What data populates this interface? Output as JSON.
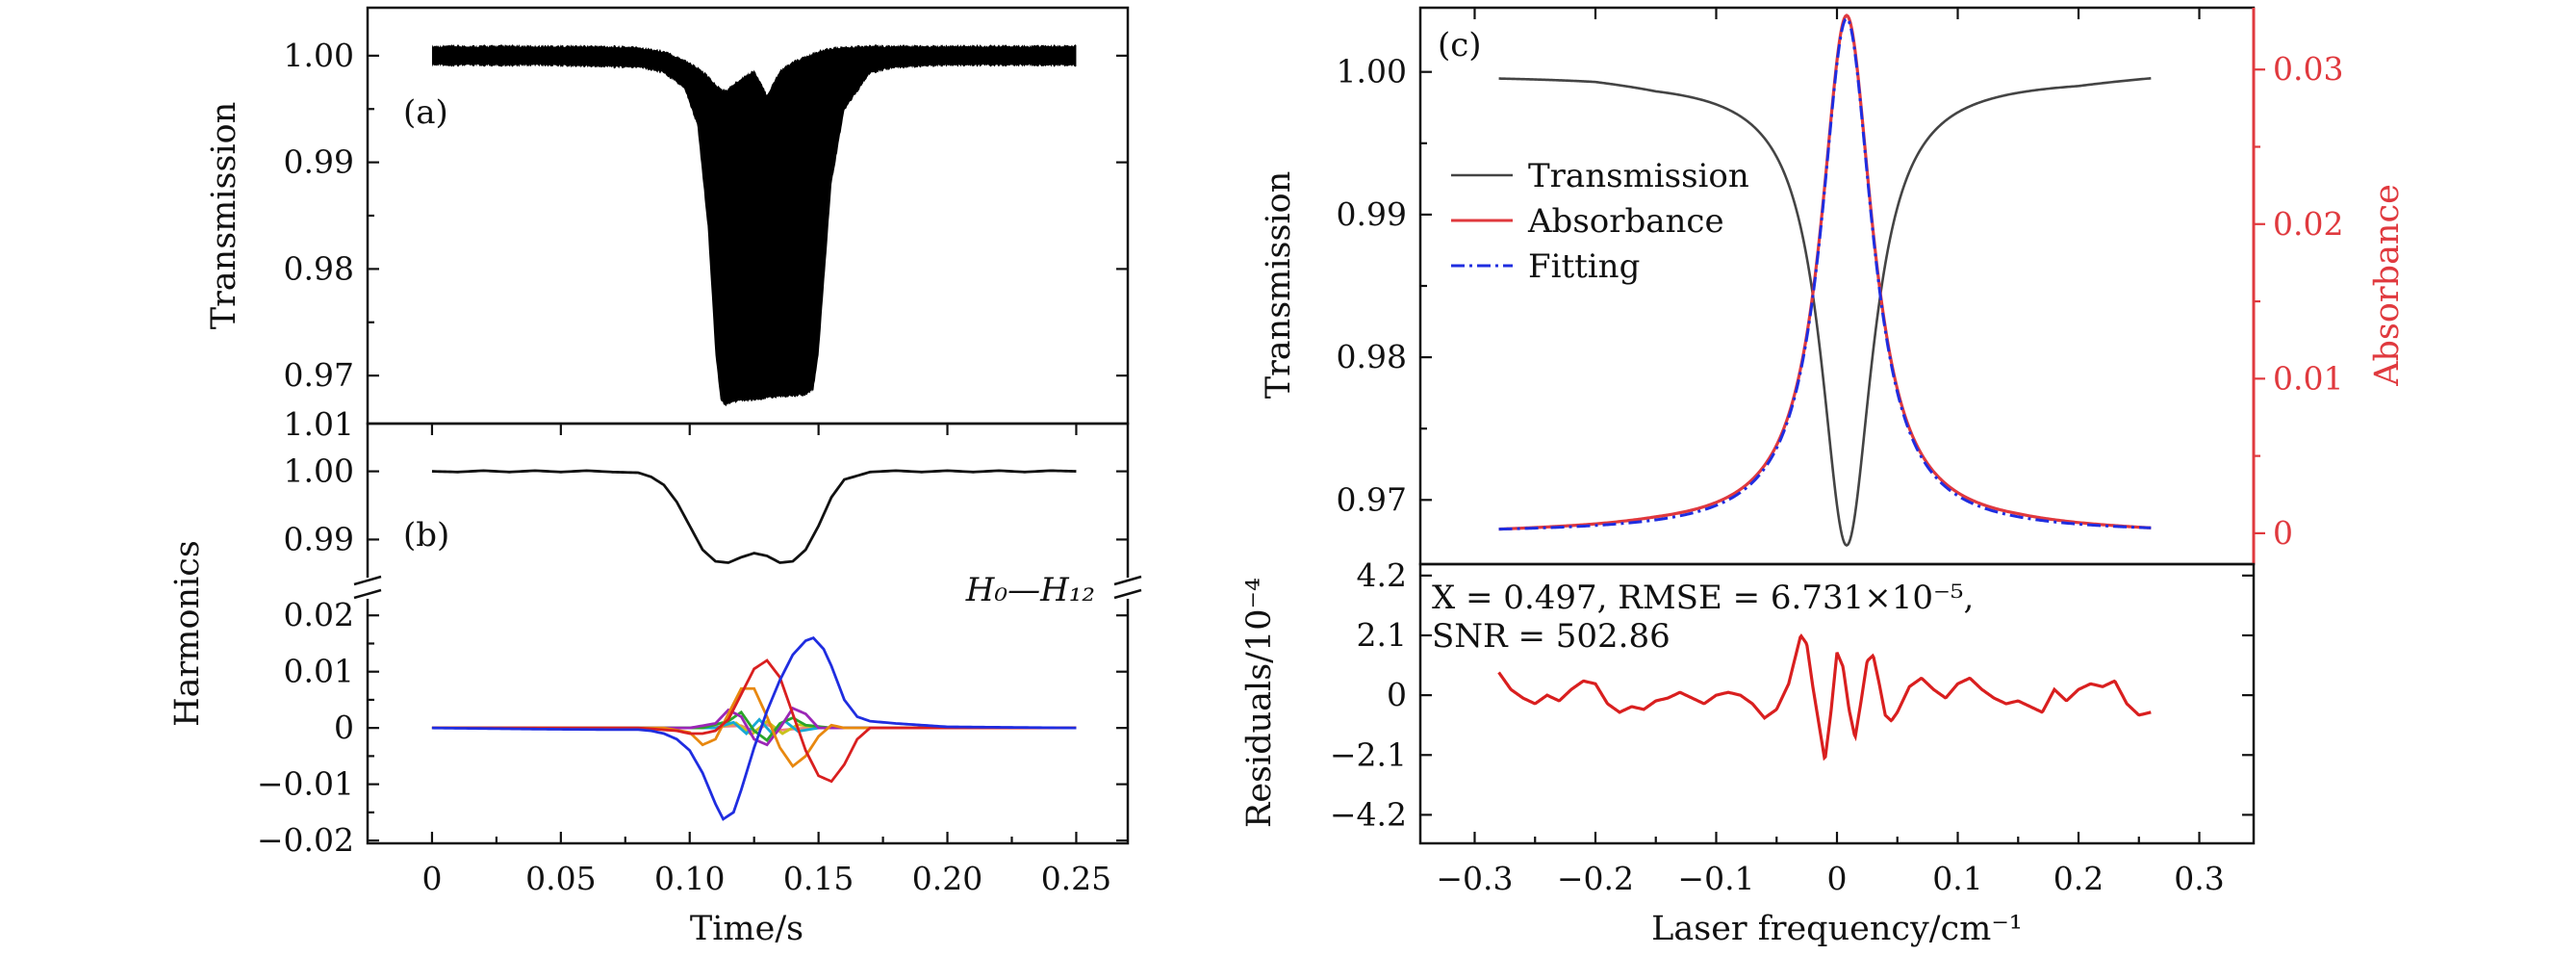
{
  "chart_data": [
    {
      "id": "a",
      "type": "line",
      "panel_label": "(a)",
      "ylabel": "Transmission",
      "xlabel": "Time/s",
      "xlim": [
        -0.025,
        0.27
      ],
      "ylim": [
        0.9655,
        1.0045
      ],
      "yticks": [
        0.97,
        0.98,
        0.99,
        1.0
      ],
      "ytick_labels": [
        "0.97",
        "0.98",
        "0.99",
        "1.00"
      ],
      "ytop_label": "1.01",
      "description_series": "dense scanned-wavelength-modulation transmission signal",
      "envelope": {
        "x": [
          0.0,
          0.02,
          0.04,
          0.06,
          0.08,
          0.09,
          0.098,
          0.103,
          0.107,
          0.11,
          0.112,
          0.114,
          0.116,
          0.12,
          0.125,
          0.13,
          0.135,
          0.14,
          0.145,
          0.148,
          0.15,
          0.155,
          0.16,
          0.17,
          0.18,
          0.2,
          0.22,
          0.25
        ],
        "upper": [
          1.0008,
          1.0008,
          1.0008,
          1.0008,
          1.0007,
          1.0003,
          0.9995,
          0.9988,
          0.998,
          0.9972,
          0.9968,
          0.9966,
          0.997,
          0.9978,
          0.9985,
          0.9962,
          0.9985,
          0.9993,
          0.9998,
          1.0001,
          1.0003,
          1.0006,
          1.0007,
          1.0008,
          1.0008,
          1.0008,
          1.0008,
          1.0008
        ],
        "lower": [
          0.9992,
          0.9992,
          0.9992,
          0.9991,
          0.999,
          0.9985,
          0.997,
          0.9935,
          0.984,
          0.972,
          0.9678,
          0.9673,
          0.9676,
          0.9677,
          0.9678,
          0.968,
          0.9681,
          0.9682,
          0.9683,
          0.9688,
          0.972,
          0.988,
          0.995,
          0.9985,
          0.999,
          0.9992,
          0.9992,
          0.9992
        ]
      }
    },
    {
      "id": "b",
      "type": "line",
      "panel_label": "(b)",
      "ylabel": "Harmonics",
      "xlabel": "Time/s",
      "xlim": [
        -0.025,
        0.27
      ],
      "xticks": [
        0,
        0.05,
        0.1,
        0.15,
        0.2,
        0.25
      ],
      "xtick_labels": [
        "0",
        "0.05",
        "0.10",
        "0.15",
        "0.20",
        "0.25"
      ],
      "upper": {
        "ylim": [
          0.983,
          1.007
        ],
        "yticks": [
          0.99,
          1.0
        ],
        "ytick_labels": [
          "0.99",
          "1.00"
        ],
        "series": [
          {
            "name": "H0",
            "x": [
              0,
              0.01,
              0.02,
              0.03,
              0.04,
              0.05,
              0.06,
              0.07,
              0.08,
              0.085,
              0.09,
              0.095,
              0.1,
              0.105,
              0.11,
              0.115,
              0.12,
              0.125,
              0.13,
              0.135,
              0.14,
              0.145,
              0.15,
              0.155,
              0.16,
              0.17,
              0.18,
              0.19,
              0.2,
              0.21,
              0.22,
              0.23,
              0.24,
              0.25
            ],
            "y": [
              1.0,
              0.9999,
              1.0001,
              0.9999,
              1.0001,
              0.9999,
              1.0001,
              0.9999,
              0.9998,
              0.9992,
              0.998,
              0.9955,
              0.992,
              0.9885,
              0.9868,
              0.9866,
              0.9874,
              0.988,
              0.9876,
              0.9866,
              0.9868,
              0.9885,
              0.992,
              0.9962,
              0.9988,
              0.9999,
              1.0001,
              0.9999,
              1.0001,
              0.9999,
              1.0001,
              0.9999,
              1.0001,
              1.0
            ]
          }
        ]
      },
      "lower": {
        "ylim": [
          -0.0205,
          0.025
        ],
        "yticks": [
          -0.02,
          -0.01,
          0,
          0.01,
          0.02
        ],
        "ytick_labels": [
          "−0.02",
          "−0.01",
          "0",
          "0.01",
          "0.02"
        ],
        "annotation": "H₀—H₁₂",
        "series": [
          {
            "name": "H1",
            "color": "#1f2de0",
            "x": [
              0,
              0.04,
              0.07,
              0.08,
              0.085,
              0.09,
              0.095,
              0.1,
              0.105,
              0.11,
              0.113,
              0.117,
              0.12,
              0.125,
              0.13,
              0.135,
              0.14,
              0.145,
              0.148,
              0.152,
              0.155,
              0.16,
              0.165,
              0.17,
              0.18,
              0.2,
              0.25
            ],
            "y": [
              0,
              -0.0002,
              -0.0003,
              -0.0003,
              -0.0005,
              -0.001,
              -0.002,
              -0.004,
              -0.008,
              -0.0135,
              -0.0162,
              -0.015,
              -0.011,
              -0.0035,
              0.003,
              0.0085,
              0.013,
              0.0155,
              0.016,
              0.014,
              0.011,
              0.005,
              0.002,
              0.0012,
              0.0008,
              0.0002,
              0
            ]
          },
          {
            "name": "H2",
            "color": "#d91f1f",
            "x": [
              0,
              0.08,
              0.095,
              0.1,
              0.105,
              0.11,
              0.115,
              0.12,
              0.125,
              0.13,
              0.135,
              0.14,
              0.145,
              0.15,
              0.155,
              0.16,
              0.165,
              0.17,
              0.25
            ],
            "y": [
              0,
              0,
              -0.0005,
              -0.001,
              -0.001,
              -0.0005,
              0.0015,
              0.006,
              0.0105,
              0.012,
              0.009,
              0.0025,
              -0.004,
              -0.0085,
              -0.0095,
              -0.0065,
              -0.002,
              0,
              0
            ]
          },
          {
            "name": "H3",
            "color": "#e8880f",
            "x": [
              0,
              0.09,
              0.1,
              0.105,
              0.11,
              0.115,
              0.12,
              0.125,
              0.13,
              0.135,
              0.14,
              0.145,
              0.15,
              0.155,
              0.16,
              0.25
            ],
            "y": [
              0,
              0,
              -0.0008,
              -0.003,
              -0.002,
              0.0025,
              0.007,
              0.007,
              0.002,
              -0.0035,
              -0.0068,
              -0.005,
              -0.0015,
              0.0005,
              0,
              0
            ]
          },
          {
            "name": "H4",
            "color": "#9b26b6",
            "x": [
              0,
              0.1,
              0.11,
              0.115,
              0.12,
              0.125,
              0.13,
              0.135,
              0.14,
              0.145,
              0.15,
              0.25
            ],
            "y": [
              0,
              0,
              0.0008,
              0.0032,
              0.002,
              -0.002,
              -0.003,
              0,
              0.0035,
              0.0025,
              0,
              0
            ]
          },
          {
            "name": "H5",
            "color": "#2aa52a",
            "x": [
              0,
              0.105,
              0.115,
              0.12,
              0.125,
              0.13,
              0.135,
              0.14,
              0.145,
              0.155,
              0.25
            ],
            "y": [
              0,
              0,
              0.0012,
              0.0028,
              -0.0005,
              -0.0022,
              0.0008,
              0.0018,
              0.0005,
              0,
              0
            ]
          },
          {
            "name": "H6",
            "color": "#17a9d6",
            "x": [
              0,
              0.11,
              0.117,
              0.122,
              0.127,
              0.132,
              0.137,
              0.142,
              0.15,
              0.25
            ],
            "y": [
              0,
              0,
              0.001,
              -0.001,
              0.0015,
              -0.001,
              0.0012,
              -0.0006,
              0,
              0
            ]
          },
          {
            "name": "H7",
            "color": "#c9c21a",
            "x": [
              0,
              0.11,
              0.118,
              0.124,
              0.13,
              0.136,
              0.142,
              0.15,
              0.25
            ],
            "y": [
              0,
              0,
              0.0009,
              -0.0012,
              0.0012,
              -0.001,
              0.0006,
              0,
              0
            ]
          },
          {
            "name": "H8",
            "color": "#f08080",
            "x": [
              0,
              0.1,
              0.12,
              0.125,
              0.13,
              0.135,
              0.145,
              0.25
            ],
            "y": [
              0,
              0,
              0.0004,
              -0.0006,
              0.0006,
              -0.0004,
              0,
              0
            ]
          }
        ]
      }
    },
    {
      "id": "c",
      "type": "line",
      "panel_label": "(c)",
      "ylabel": "Transmission",
      "ylabel_right": "Absorbance",
      "xlim": [
        -0.345,
        0.345
      ],
      "ylim": [
        0.9655,
        1.0045
      ],
      "yticks": [
        0.97,
        0.98,
        0.99,
        1.0
      ],
      "ytick_labels": [
        "0.97",
        "0.98",
        "0.99",
        "1.00"
      ],
      "ylim_right": [
        -0.002,
        0.034
      ],
      "yticks_right": [
        0,
        0.01,
        0.02,
        0.03
      ],
      "ytick_labels_right": [
        "0",
        "0.01",
        "0.02",
        "0.03"
      ],
      "legend": [
        "Transmission",
        "Absorbance",
        "Fitting"
      ],
      "legend_position": "center-left",
      "line_model": {
        "center": 0.008,
        "half_width": 0.0258,
        "peak_absorbance": 0.0333,
        "baseline_transmission": 0.9998,
        "x_range": [
          -0.28,
          0.26
        ]
      },
      "baseline_wiggle": {
        "x": [
          -0.28,
          -0.2,
          -0.15,
          0.15,
          0.2,
          0.26
        ],
        "transmission": [
          0.9998,
          0.9999,
          0.9997,
          0.9998,
          0.9997,
          0.9999
        ],
        "absorbance": [
          0.0,
          0.0001,
          0.0002,
          0.0002,
          0.0001,
          0.0
        ]
      }
    },
    {
      "id": "d",
      "type": "line",
      "ylabel": "Residuals/10⁻⁴",
      "xlabel": "Laser frequency/cm⁻¹",
      "xlim": [
        -0.345,
        0.345
      ],
      "xticks": [
        -0.3,
        -0.2,
        -0.1,
        0,
        0.1,
        0.2,
        0.3
      ],
      "xtick_labels": [
        "−0.3",
        "−0.2",
        "−0.1",
        "0",
        "0.1",
        "0.2",
        "0.3"
      ],
      "ylim": [
        -5.2,
        4.6
      ],
      "yticks": [
        -4.2,
        -2.1,
        0,
        2.1,
        4.2
      ],
      "ytick_labels": [
        "−4.2",
        "−2.1",
        "0",
        "2.1",
        "4.2"
      ],
      "stats_line1": "X = 0.497, RMSE = 6.731×10⁻⁵,",
      "stats_line2": "SNR = 502.86",
      "series": [
        {
          "name": "Residuals",
          "color": "#d91f1f",
          "x": [
            -0.28,
            -0.27,
            -0.26,
            -0.25,
            -0.24,
            -0.23,
            -0.22,
            -0.21,
            -0.2,
            -0.19,
            -0.18,
            -0.17,
            -0.16,
            -0.15,
            -0.14,
            -0.13,
            -0.12,
            -0.11,
            -0.1,
            -0.09,
            -0.08,
            -0.07,
            -0.06,
            -0.05,
            -0.04,
            -0.03,
            -0.025,
            -0.02,
            -0.015,
            -0.01,
            -0.005,
            0.0,
            0.005,
            0.01,
            0.015,
            0.02,
            0.025,
            0.03,
            0.035,
            0.04,
            0.045,
            0.05,
            0.06,
            0.07,
            0.08,
            0.09,
            0.1,
            0.11,
            0.12,
            0.13,
            0.14,
            0.15,
            0.16,
            0.17,
            0.18,
            0.19,
            0.2,
            0.21,
            0.22,
            0.23,
            0.24,
            0.25,
            0.26
          ],
          "y": [
            0.8,
            0.2,
            -0.1,
            -0.3,
            0.0,
            -0.2,
            0.2,
            0.5,
            0.4,
            -0.3,
            -0.6,
            -0.4,
            -0.5,
            -0.2,
            -0.1,
            0.1,
            -0.1,
            -0.3,
            0.0,
            0.1,
            0.0,
            -0.3,
            -0.8,
            -0.5,
            0.4,
            2.1,
            1.8,
            0.3,
            -1.0,
            -2.3,
            -0.6,
            1.5,
            1.0,
            -0.5,
            -1.5,
            -0.2,
            1.2,
            1.4,
            0.4,
            -0.7,
            -0.9,
            -0.6,
            0.3,
            0.6,
            0.2,
            -0.1,
            0.4,
            0.6,
            0.2,
            -0.1,
            -0.3,
            -0.2,
            -0.4,
            -0.6,
            0.2,
            -0.2,
            0.2,
            0.4,
            0.3,
            0.5,
            -0.3,
            -0.7,
            -0.6
          ]
        }
      ]
    }
  ]
}
